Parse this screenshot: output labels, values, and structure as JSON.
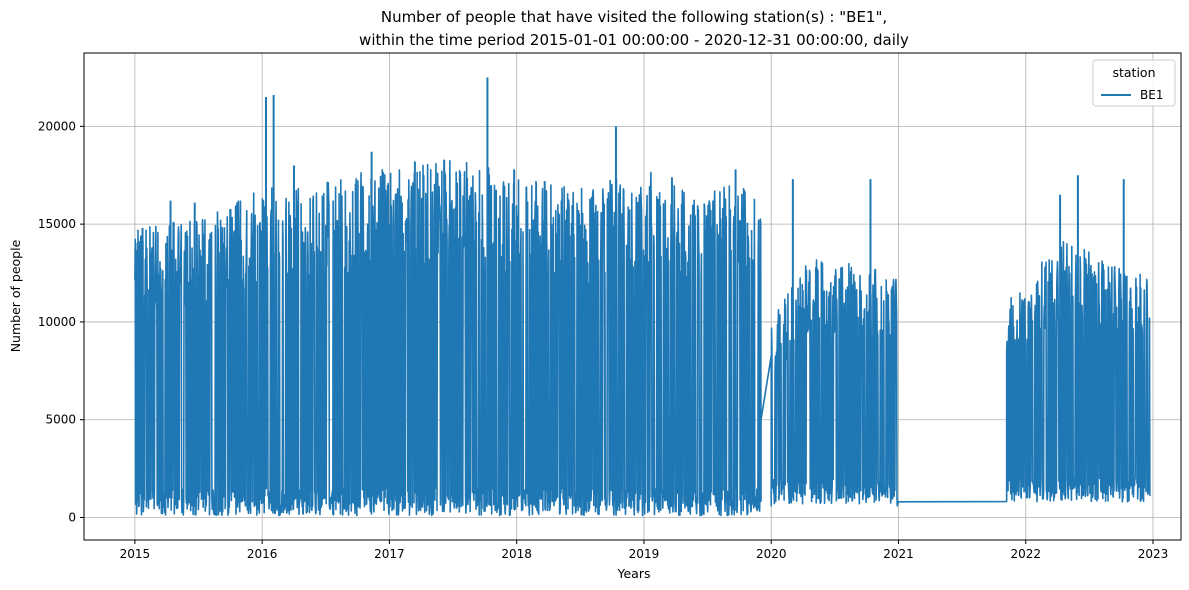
{
  "chart_data": {
    "type": "line",
    "title_line1": "Number of people that have visited the following station(s) : \"BE1\",",
    "title_line2": "within the time period 2015-01-01 00:00:00 - 2020-12-31 00:00:00, daily",
    "xlabel": "Years",
    "ylabel": "Number of people",
    "xlim": [
      2014.6,
      2023.22
    ],
    "ylim": [
      -1150,
      23750
    ],
    "x_ticks": [
      2015,
      2016,
      2017,
      2018,
      2019,
      2020,
      2021,
      2022,
      2023
    ],
    "x_tick_labels": [
      "2015",
      "2016",
      "2017",
      "2018",
      "2019",
      "2020",
      "2021",
      "2022",
      "2023"
    ],
    "y_ticks": [
      0,
      5000,
      10000,
      15000,
      20000
    ],
    "y_tick_labels": [
      "0",
      "5000",
      "10000",
      "15000",
      "20000"
    ],
    "grid": true,
    "legend_title": "station",
    "legend_position": "top-right",
    "series": [
      {
        "name": "BE1",
        "color": "#1f77b4",
        "segments": [
          {
            "x_start": 2015.0,
            "x_end": 2019.92,
            "low_min": 100,
            "low_max": 1500,
            "high_env": [
              [
                2015.0,
                14500
              ],
              [
                2015.5,
                15000
              ],
              [
                2016.0,
                16500
              ],
              [
                2016.5,
                17000
              ],
              [
                2017.0,
                17500
              ],
              [
                2017.5,
                18000
              ],
              [
                2018.0,
                17200
              ],
              [
                2018.5,
                16500
              ],
              [
                2019.0,
                17500
              ],
              [
                2019.5,
                16500
              ],
              [
                2019.92,
                16800
              ]
            ]
          },
          {
            "x_start": 2020.0,
            "x_end": 2020.99,
            "low_min": 700,
            "low_max": 2000,
            "high_env": [
              [
                2020.0,
                10000
              ],
              [
                2020.3,
                13000
              ],
              [
                2020.6,
                13000
              ],
              [
                2020.99,
                12000
              ]
            ]
          },
          {
            "x_start": 2021.85,
            "x_end": 2022.98,
            "low_min": 800,
            "low_max": 2000,
            "high_env": [
              [
                2021.85,
                11000
              ],
              [
                2022.3,
                14000
              ],
              [
                2022.6,
                13000
              ],
              [
                2022.98,
                12000
              ]
            ]
          }
        ],
        "connector_points": [
          [
            2019.92,
            5000
          ],
          [
            2020.0,
            600
          ],
          [
            2020.99,
            600
          ],
          [
            2021.0,
            800
          ],
          [
            2021.85,
            8500
          ]
        ],
        "peaks": [
          {
            "x": 2015.06,
            "y": 14800
          },
          {
            "x": 2015.28,
            "y": 16200
          },
          {
            "x": 2015.47,
            "y": 16100
          },
          {
            "x": 2016.03,
            "y": 21500
          },
          {
            "x": 2016.09,
            "y": 21600
          },
          {
            "x": 2016.25,
            "y": 18000
          },
          {
            "x": 2016.86,
            "y": 18700
          },
          {
            "x": 2017.2,
            "y": 18200
          },
          {
            "x": 2017.43,
            "y": 18300
          },
          {
            "x": 2017.77,
            "y": 22500
          },
          {
            "x": 2017.98,
            "y": 17800
          },
          {
            "x": 2018.22,
            "y": 17200
          },
          {
            "x": 2018.78,
            "y": 20000
          },
          {
            "x": 2019.22,
            "y": 17400
          },
          {
            "x": 2019.72,
            "y": 17800
          },
          {
            "x": 2020.17,
            "y": 17300
          },
          {
            "x": 2020.78,
            "y": 17300
          },
          {
            "x": 2022.27,
            "y": 16500
          },
          {
            "x": 2022.41,
            "y": 17500
          },
          {
            "x": 2022.77,
            "y": 17300
          }
        ]
      }
    ]
  }
}
